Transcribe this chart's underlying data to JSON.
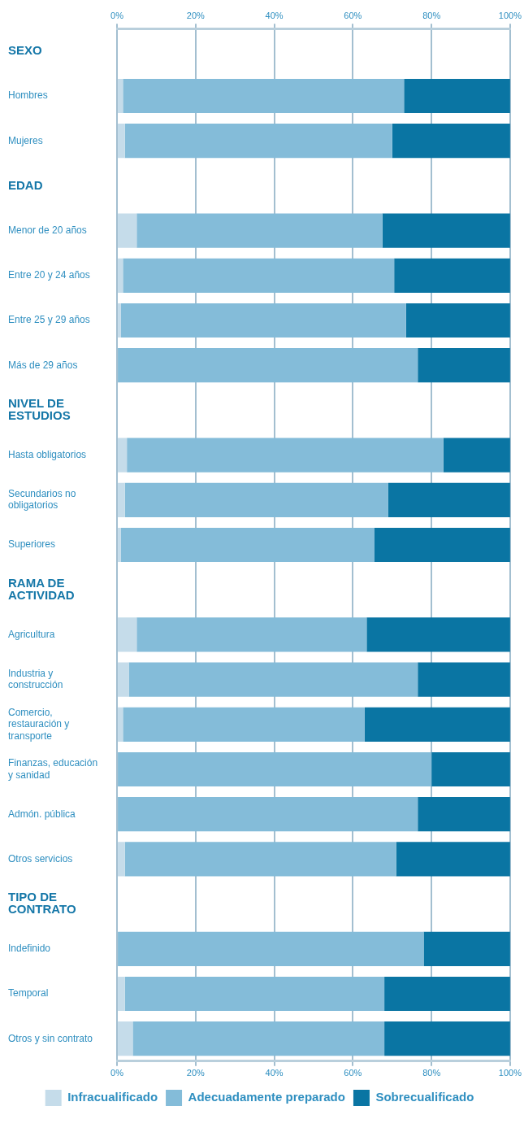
{
  "chart_data": {
    "type": "bar",
    "orientation": "horizontal",
    "stacked": true,
    "categories": [
      "SEXO",
      "Hombres",
      "Mujeres",
      "EDAD",
      "Menor de 20 años",
      "Entre 20 y 24 años",
      "Entre 25 y 29 años",
      "Más de 29 años",
      "NIVEL DE ESTUDIOS",
      "Hasta obligatorios",
      "Secundarios no obligatorios",
      "Superiores",
      "RAMA DE ACTIVIDAD",
      "Agricultura",
      "Industria y construcción",
      "Comercio, restauración y transporte",
      "Finanzas, educación y sanidad",
      "Admón. pública",
      "Otros servicios",
      "TIPO DE CONTRATO",
      "Indefinido",
      "Temporal",
      "Otros y sin contrato"
    ],
    "series": [
      {
        "name": "Infracualificado",
        "color": "#c5dcea",
        "values": [
          null,
          1.5,
          2,
          null,
          5,
          1.5,
          1,
          null,
          null,
          2.5,
          2,
          1,
          null,
          5,
          3,
          1.5,
          null,
          null,
          2,
          null,
          null,
          2,
          4
        ]
      },
      {
        "name": "Adecuadamente preparado",
        "color": "#84bcd9",
        "values": [
          null,
          71.5,
          68,
          null,
          62.5,
          69,
          72.5,
          76.5,
          null,
          80.5,
          67,
          64.5,
          null,
          58.5,
          73.5,
          61.5,
          80,
          76.5,
          69,
          null,
          78,
          66,
          64
        ]
      },
      {
        "name": "Sobrecualificado",
        "color": "#0a75a3",
        "values": [
          null,
          27,
          30,
          null,
          32.5,
          29.5,
          26.5,
          23.5,
          null,
          17,
          31,
          34.5,
          null,
          36.5,
          23.5,
          37,
          20,
          23.5,
          29,
          null,
          22,
          32,
          32
        ]
      }
    ],
    "xlim": [
      0,
      100
    ],
    "xticks": [
      {
        "value": 0,
        "label": "0%"
      },
      {
        "value": 20,
        "label": "20%"
      },
      {
        "value": 40,
        "label": "40%"
      },
      {
        "value": 60,
        "label": "60%"
      },
      {
        "value": 80,
        "label": "80%"
      },
      {
        "value": 100,
        "label": "100%"
      }
    ],
    "x2lim": [
      0,
      100
    ],
    "x2ticks": [
      {
        "value": 0,
        "label": "0%"
      },
      {
        "value": 20,
        "label": "20%"
      },
      {
        "value": 40,
        "label": "40%"
      },
      {
        "value": 60,
        "label": "60%"
      },
      {
        "value": 80,
        "label": "80%"
      },
      {
        "value": 100,
        "label": "100%"
      }
    ],
    "grid": "x",
    "legend": "bottom"
  }
}
